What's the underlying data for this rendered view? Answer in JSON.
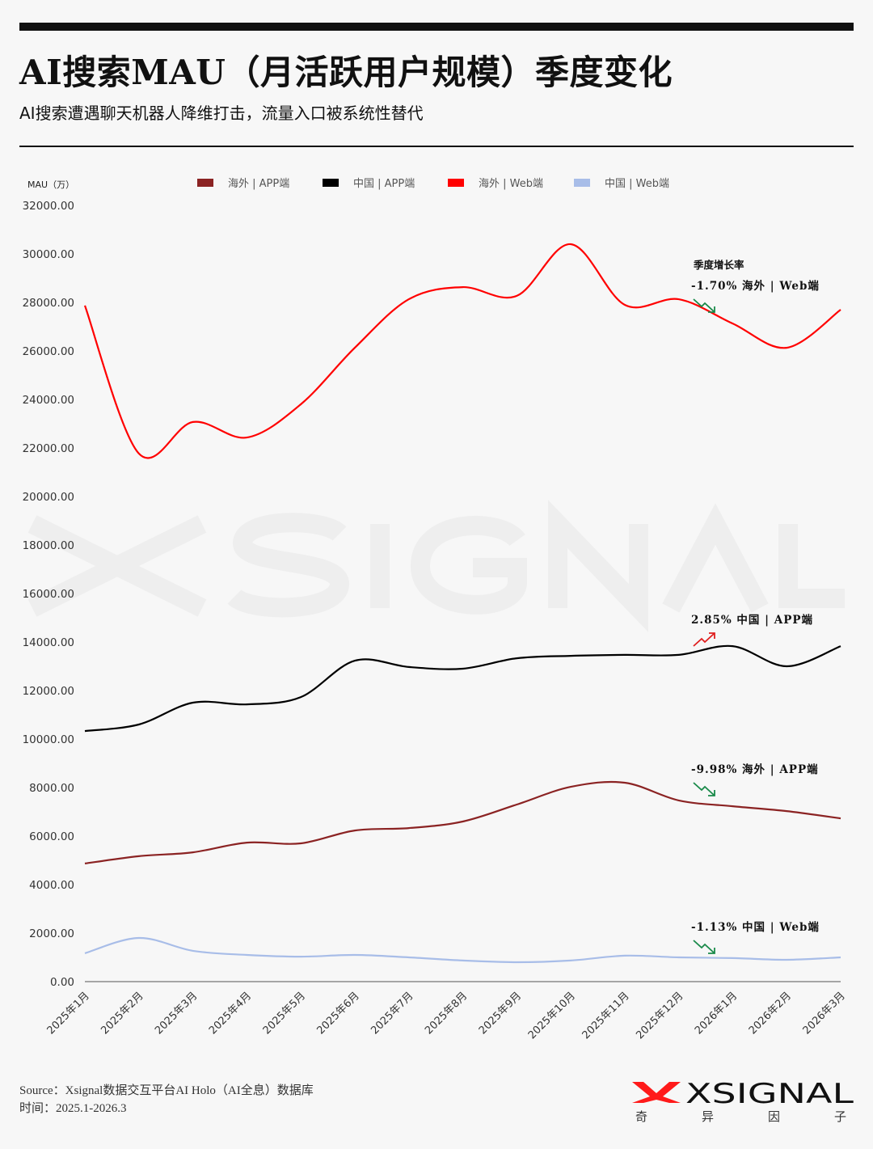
{
  "title": "AI搜索MAU（月活跃用户规模）季度变化",
  "subtitle": "AI搜索遭遇聊天机器人降维打击，流量入口被系统性替代",
  "footer": {
    "source": "Source：Xsignal数据交互平台AI Holo（AI全息）数据库",
    "time": "时间：2025.1-2026.3"
  },
  "logo": {
    "text": "XSIGNAL",
    "subtext": [
      "奇",
      "异",
      "因",
      "子"
    ],
    "accent": "#ff1a1a"
  },
  "watermark": "XSIGNAL",
  "chart_data": {
    "type": "line",
    "title": "AI搜索MAU（月活跃用户规模）季度变化",
    "ylabel": "MAU（万）",
    "xlabel": "",
    "ylim": [
      0,
      32000
    ],
    "yticks": [
      "0.00",
      "2000.00",
      "4000.00",
      "6000.00",
      "8000.00",
      "10000.00",
      "12000.00",
      "14000.00",
      "16000.00",
      "18000.00",
      "20000.00",
      "22000.00",
      "24000.00",
      "26000.00",
      "28000.00",
      "30000.00",
      "32000.00"
    ],
    "grid": false,
    "legend_position": "top",
    "categories": [
      "2025年1月",
      "2025年2月",
      "2025年3月",
      "2025年4月",
      "2025年5月",
      "2025年6月",
      "2025年7月",
      "2025年8月",
      "2025年9月",
      "2025年10月",
      "2025年11月",
      "2025年12月",
      "2026年1月",
      "2026年2月",
      "2026年3月"
    ],
    "series": [
      {
        "name": "海外 | APP端",
        "color": "#8b2323",
        "values": [
          4870,
          5170,
          5330,
          5730,
          5700,
          6230,
          6330,
          6600,
          7300,
          8030,
          8200,
          7470,
          7230,
          7030,
          6730
        ]
      },
      {
        "name": "中国 | APP端",
        "color": "#000000",
        "values": [
          10330,
          10600,
          11500,
          11430,
          11730,
          13230,
          12970,
          12900,
          13330,
          13430,
          13470,
          13470,
          13830,
          13000,
          13830
        ]
      },
      {
        "name": "海外 | Web端",
        "color": "#ff0000",
        "values": [
          27870,
          21770,
          23070,
          22430,
          23800,
          26130,
          28130,
          28630,
          28270,
          30400,
          27900,
          28130,
          27130,
          26130,
          27700
        ]
      },
      {
        "name": "中国 | Web端",
        "color": "#a8bde8",
        "values": [
          1170,
          1800,
          1270,
          1100,
          1030,
          1100,
          1000,
          870,
          800,
          870,
          1070,
          1000,
          970,
          900,
          1000
        ]
      }
    ],
    "annotation_title": "季度增长率",
    "annotations": [
      {
        "text": "-1.70%   海外 | Web端",
        "trend": "down",
        "color": "#1a8a4a",
        "series": "海外 | Web端"
      },
      {
        "text": "2.85%   中国 | APP端",
        "trend": "up",
        "color": "#e02020",
        "series": "中国 | APP端"
      },
      {
        "text": "-9.98%   海外 | APP端",
        "trend": "down",
        "color": "#1a8a4a",
        "series": "海外 | APP端"
      },
      {
        "text": "-1.13%   中国 | Web端",
        "trend": "down",
        "color": "#1a8a4a",
        "series": "中国 | Web端"
      }
    ]
  }
}
